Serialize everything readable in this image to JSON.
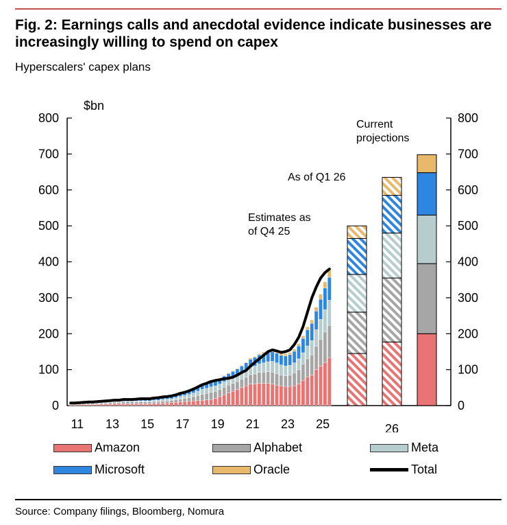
{
  "header": {
    "title": "Fig. 2: Earnings calls and anecdotal evidence indicate businesses are increasingly willing to spend on capex",
    "subtitle": "Hyperscalers' capex plans"
  },
  "footer": {
    "source": "Source: Company filings, Bloomberg, Nomura"
  },
  "colors": {
    "Amazon": "#e87474",
    "Alphabet": "#a6a6a6",
    "Meta": "#b7cccc",
    "Microsoft": "#2e86e0",
    "Oracle": "#e8b86b",
    "Total": "#000000",
    "accent_rule": "#c0504d"
  },
  "chart_data": {
    "type": "bar",
    "stacked": true,
    "unit_label": "$bn",
    "ylim": [
      0,
      800
    ],
    "yticks": [
      0,
      100,
      200,
      300,
      400,
      500,
      600,
      700,
      800
    ],
    "xtick_labels": [
      "11",
      "13",
      "15",
      "17",
      "19",
      "21",
      "23",
      "25",
      "26"
    ],
    "series_names": [
      "Amazon",
      "Alphabet",
      "Meta",
      "Microsoft",
      "Oracle"
    ],
    "quarterly": {
      "x": [
        "Q1 11",
        "Q2 11",
        "Q3 11",
        "Q4 11",
        "Q1 12",
        "Q2 12",
        "Q3 12",
        "Q4 12",
        "Q1 13",
        "Q2 13",
        "Q3 13",
        "Q4 13",
        "Q1 14",
        "Q2 14",
        "Q3 14",
        "Q4 14",
        "Q1 15",
        "Q2 15",
        "Q3 15",
        "Q4 15",
        "Q1 16",
        "Q2 16",
        "Q3 16",
        "Q4 16",
        "Q1 17",
        "Q2 17",
        "Q3 17",
        "Q4 17",
        "Q1 18",
        "Q2 18",
        "Q3 18",
        "Q4 18",
        "Q1 19",
        "Q2 19",
        "Q3 19",
        "Q4 19",
        "Q1 20",
        "Q2 20",
        "Q3 20",
        "Q4 20",
        "Q1 21",
        "Q2 21",
        "Q3 21",
        "Q4 21",
        "Q1 22",
        "Q2 22",
        "Q3 22",
        "Q4 22",
        "Q1 23",
        "Q2 23",
        "Q3 23",
        "Q4 23",
        "Q1 24",
        "Q2 24",
        "Q3 24",
        "Q4 24",
        "Q1 25",
        "Q2 25",
        "Q3 25",
        "Q4 25"
      ],
      "series": [
        {
          "name": "Amazon",
          "values": [
            2,
            2,
            3,
            3,
            3,
            3,
            3,
            4,
            4,
            4,
            5,
            5,
            5,
            5,
            5,
            5,
            5,
            5,
            5,
            6,
            6,
            7,
            7,
            8,
            9,
            10,
            11,
            12,
            13,
            14,
            15,
            16,
            17,
            20,
            25,
            30,
            35,
            40,
            45,
            50,
            55,
            60,
            60,
            62,
            62,
            62,
            60,
            57,
            55,
            53,
            53,
            55,
            60,
            70,
            80,
            85,
            100,
            110,
            120,
            133
          ]
        },
        {
          "name": "Alphabet",
          "values": [
            2,
            2,
            2,
            3,
            3,
            3,
            3,
            3,
            3,
            4,
            4,
            4,
            5,
            5,
            5,
            5,
            5,
            5,
            5,
            5,
            5,
            6,
            6,
            6,
            7,
            8,
            9,
            10,
            12,
            14,
            16,
            18,
            20,
            20,
            20,
            21,
            22,
            22,
            22,
            23,
            24,
            26,
            28,
            30,
            31,
            32,
            33,
            32,
            30,
            30,
            32,
            36,
            40,
            45,
            50,
            56,
            65,
            75,
            85,
            90
          ]
        },
        {
          "name": "Meta",
          "values": [
            1,
            1,
            1,
            1,
            1,
            1,
            1,
            2,
            2,
            2,
            2,
            2,
            2,
            2,
            2,
            3,
            3,
            3,
            3,
            4,
            4,
            4,
            5,
            5,
            6,
            7,
            8,
            9,
            10,
            12,
            14,
            14,
            15,
            15,
            15,
            15,
            15,
            15,
            16,
            17,
            18,
            20,
            22,
            24,
            26,
            28,
            30,
            30,
            28,
            27,
            27,
            28,
            30,
            32,
            36,
            40,
            46,
            55,
            62,
            70
          ]
        },
        {
          "name": "Microsoft",
          "values": [
            1,
            1,
            1,
            1,
            2,
            2,
            2,
            2,
            3,
            3,
            3,
            3,
            4,
            4,
            4,
            4,
            5,
            5,
            5,
            5,
            6,
            6,
            6,
            7,
            7,
            8,
            8,
            9,
            10,
            11,
            12,
            13,
            14,
            15,
            15,
            16,
            17,
            18,
            19,
            20,
            22,
            23,
            24,
            25,
            26,
            27,
            27,
            27,
            27,
            28,
            30,
            32,
            36,
            40,
            45,
            48,
            52,
            56,
            60,
            64
          ]
        },
        {
          "name": "Oracle",
          "values": [
            0.5,
            0.5,
            0.5,
            0.5,
            0.5,
            0.5,
            0.5,
            0.5,
            0.5,
            0.5,
            0.5,
            0.5,
            1,
            1,
            1,
            1,
            1,
            1,
            1,
            1,
            1,
            1,
            1,
            1,
            1,
            1,
            1,
            1,
            1,
            1,
            1,
            1,
            1,
            2,
            2,
            2,
            2,
            2,
            2,
            2,
            2,
            3,
            3,
            3,
            4,
            4,
            5,
            5,
            6,
            6,
            6,
            6,
            6,
            7,
            8,
            9,
            11,
            14,
            17,
            20
          ]
        }
      ],
      "total_line": [
        7,
        7,
        8,
        9,
        10,
        10,
        11,
        12,
        13,
        14,
        15,
        15,
        17,
        17,
        17,
        18,
        19,
        19,
        19,
        21,
        22,
        24,
        25,
        27,
        30,
        34,
        37,
        41,
        46,
        52,
        58,
        62,
        67,
        70,
        72,
        75,
        76,
        79,
        85,
        92,
        98,
        110,
        120,
        130,
        140,
        150,
        155,
        152,
        148,
        150,
        155,
        170,
        190,
        220,
        260,
        300,
        330,
        355,
        370,
        380
      ]
    },
    "projection_groups": [
      "Estimates as of Q4 25",
      "As of Q1 26",
      "Current projections"
    ],
    "projections": [
      {
        "label": "Estimates as of Q4 25",
        "style": "hatched",
        "values": {
          "Amazon": 145,
          "Alphabet": 115,
          "Meta": 105,
          "Microsoft": 100,
          "Oracle": 35
        }
      },
      {
        "label": "As of Q1 26",
        "style": "hatched",
        "values": {
          "Amazon": 177,
          "Alphabet": 178,
          "Meta": 125,
          "Microsoft": 105,
          "Oracle": 50
        }
      },
      {
        "label": "Current projections",
        "style": "solid",
        "values": {
          "Amazon": 200,
          "Alphabet": 195,
          "Meta": 135,
          "Microsoft": 118,
          "Oracle": 50
        }
      }
    ],
    "legend": [
      "Amazon",
      "Alphabet",
      "Meta",
      "Microsoft",
      "Oracle",
      "Total"
    ],
    "legend_position": "bottom",
    "grid": false
  }
}
